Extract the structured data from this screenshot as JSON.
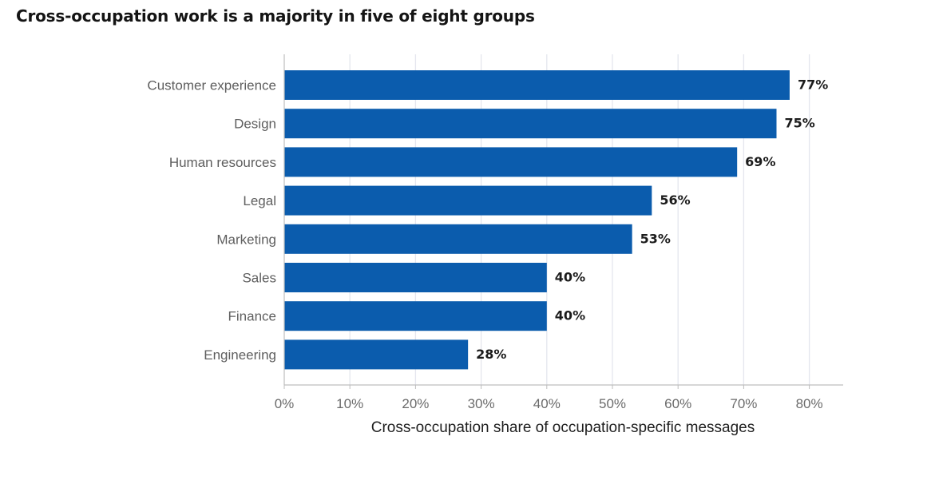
{
  "chart_data": {
    "type": "bar",
    "orientation": "horizontal",
    "title": "Cross-occupation work is a majority in five of eight groups",
    "xlabel": "Cross-occupation share of occupation-specific messages",
    "ylabel": "",
    "categories": [
      "Customer experience",
      "Design",
      "Human resources",
      "Legal",
      "Marketing",
      "Sales",
      "Finance",
      "Engineering"
    ],
    "values": [
      77,
      75,
      69,
      56,
      53,
      40,
      40,
      28
    ],
    "value_labels": [
      "77%",
      "75%",
      "69%",
      "56%",
      "53%",
      "40%",
      "40%",
      "28%"
    ],
    "xlim": [
      0,
      85
    ],
    "xticks": [
      0,
      10,
      20,
      30,
      40,
      50,
      60,
      70,
      80
    ],
    "xtick_labels": [
      "0%",
      "10%",
      "20%",
      "30%",
      "40%",
      "50%",
      "60%",
      "70%",
      "80%"
    ],
    "grid": "vertical",
    "legend": "none",
    "bar_color": "#0b5cad"
  }
}
